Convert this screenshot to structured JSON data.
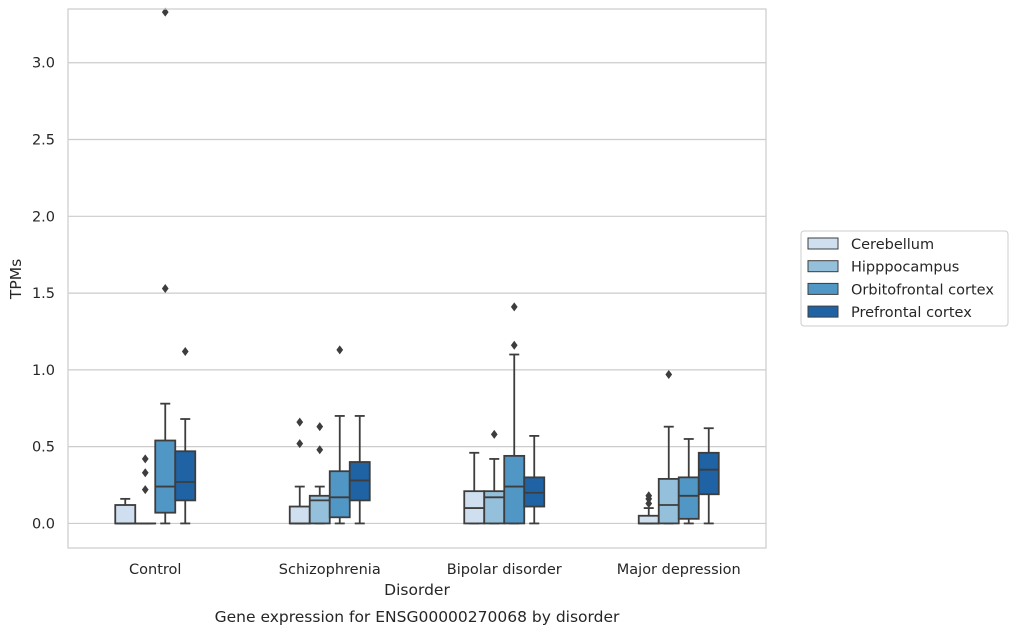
{
  "chart_data": {
    "type": "box",
    "xlabel": "Disorder",
    "ylabel": "TPMs",
    "caption": "Gene expression for ENSG00000270068 by disorder",
    "ylim": [
      -0.16,
      3.35
    ],
    "yticks": [
      0.0,
      0.5,
      1.0,
      1.5,
      2.0,
      2.5,
      3.0
    ],
    "ytick_labels": [
      "0.0",
      "0.5",
      "1.0",
      "1.5",
      "2.0",
      "2.5",
      "3.0"
    ],
    "grid": "horizontal",
    "legend_position": "right",
    "categories": [
      "Control",
      "Schizophrenia",
      "Bipolar disorder",
      "Major depression"
    ],
    "series": [
      {
        "name": "Cerebellum",
        "color": "#cfdff0",
        "boxes": [
          {
            "whislo": 0.0,
            "q1": 0.0,
            "med": 0.0,
            "q3": 0.12,
            "whishi": 0.16,
            "fliers": []
          },
          {
            "whislo": 0.0,
            "q1": 0.0,
            "med": 0.0,
            "q3": 0.11,
            "whishi": 0.24,
            "fliers": [
              0.52,
              0.66
            ]
          },
          {
            "whislo": 0.0,
            "q1": 0.0,
            "med": 0.1,
            "q3": 0.21,
            "whishi": 0.46,
            "fliers": []
          },
          {
            "whislo": 0.0,
            "q1": 0.0,
            "med": 0.0,
            "q3": 0.05,
            "whishi": 0.1,
            "fliers": [
              0.13,
              0.16,
              0.18
            ]
          }
        ]
      },
      {
        "name": "Hipppocampus",
        "color": "#94c0dc",
        "boxes": [
          {
            "whislo": 0.0,
            "q1": 0.0,
            "med": 0.0,
            "q3": 0.0,
            "whishi": 0.0,
            "fliers": [
              0.22,
              0.33,
              0.42
            ]
          },
          {
            "whislo": 0.0,
            "q1": 0.0,
            "med": 0.15,
            "q3": 0.18,
            "whishi": 0.24,
            "fliers": [
              0.48,
              0.63
            ]
          },
          {
            "whislo": 0.0,
            "q1": 0.0,
            "med": 0.17,
            "q3": 0.21,
            "whishi": 0.42,
            "fliers": [
              0.58
            ]
          },
          {
            "whislo": 0.0,
            "q1": 0.0,
            "med": 0.12,
            "q3": 0.29,
            "whishi": 0.63,
            "fliers": [
              0.97
            ]
          }
        ]
      },
      {
        "name": "Orbitofrontal cortex",
        "color": "#5197c6",
        "boxes": [
          {
            "whislo": 0.0,
            "q1": 0.07,
            "med": 0.24,
            "q3": 0.54,
            "whishi": 0.78,
            "fliers": [
              1.53,
              3.33
            ]
          },
          {
            "whislo": 0.0,
            "q1": 0.04,
            "med": 0.17,
            "q3": 0.34,
            "whishi": 0.7,
            "fliers": [
              1.13
            ]
          },
          {
            "whislo": 0.0,
            "q1": 0.0,
            "med": 0.24,
            "q3": 0.44,
            "whishi": 1.1,
            "fliers": [
              1.16,
              1.41
            ]
          },
          {
            "whislo": 0.0,
            "q1": 0.03,
            "med": 0.18,
            "q3": 0.3,
            "whishi": 0.55,
            "fliers": []
          }
        ]
      },
      {
        "name": "Prefrontal cortex",
        "color": "#1f63a5",
        "boxes": [
          {
            "whislo": 0.0,
            "q1": 0.15,
            "med": 0.27,
            "q3": 0.47,
            "whishi": 0.68,
            "fliers": [
              1.12
            ]
          },
          {
            "whislo": 0.0,
            "q1": 0.15,
            "med": 0.28,
            "q3": 0.4,
            "whishi": 0.7,
            "fliers": []
          },
          {
            "whislo": 0.0,
            "q1": 0.11,
            "med": 0.2,
            "q3": 0.3,
            "whishi": 0.57,
            "fliers": []
          },
          {
            "whislo": 0.0,
            "q1": 0.19,
            "med": 0.35,
            "q3": 0.46,
            "whishi": 0.62,
            "fliers": []
          }
        ]
      }
    ]
  }
}
